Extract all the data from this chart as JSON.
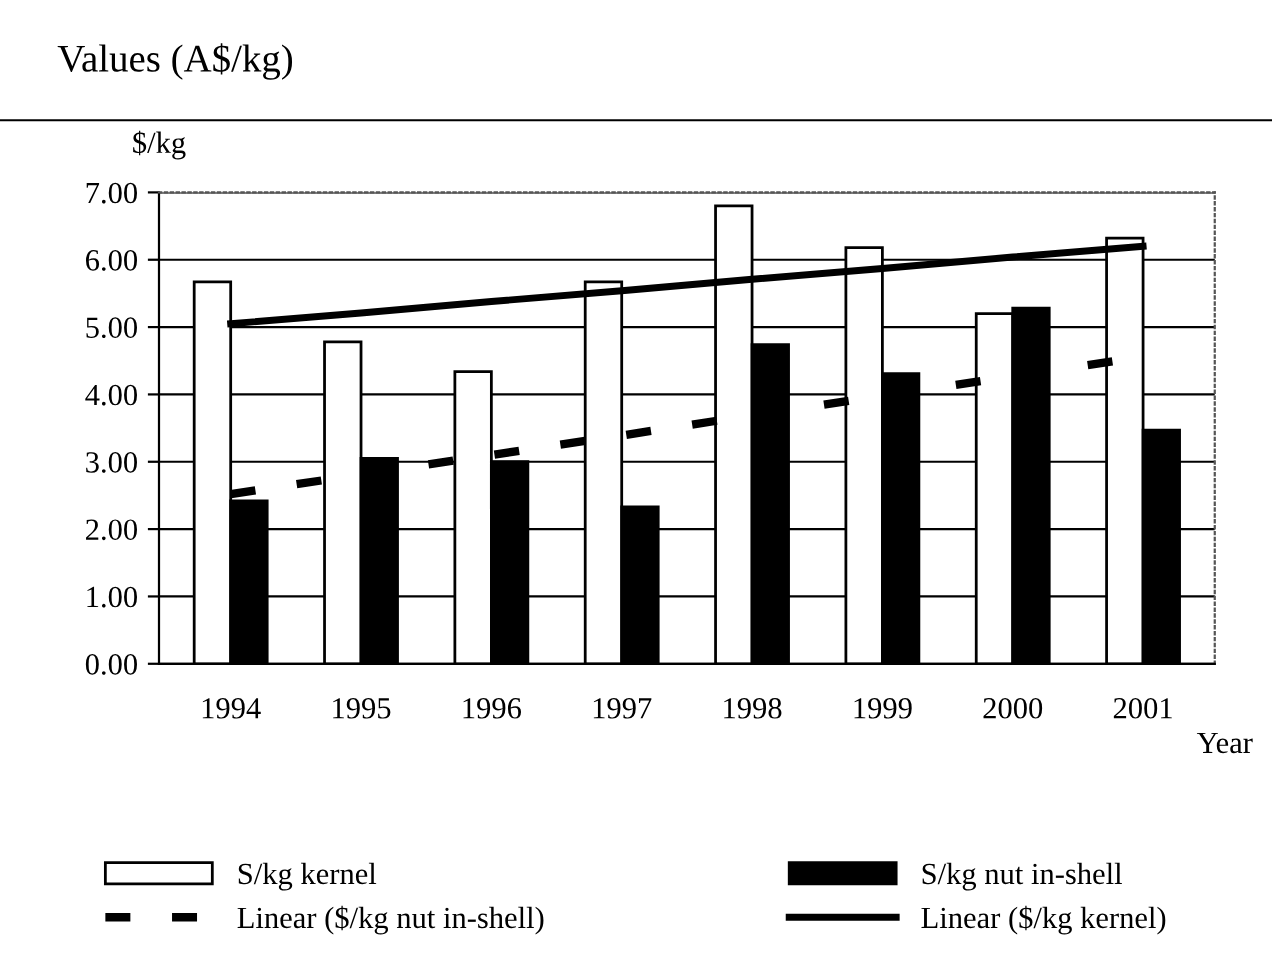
{
  "chart_data": {
    "type": "bar",
    "title": "Values (A$/kg)",
    "ylabel": "$/kg",
    "xlabel": "Year",
    "categories": [
      "1994",
      "1995",
      "1996",
      "1997",
      "1998",
      "1999",
      "2000",
      "2001"
    ],
    "series": [
      {
        "name": "S/kg kernel",
        "color": "#ffffff",
        "values": [
          5.67,
          4.78,
          4.34,
          5.67,
          6.8,
          6.18,
          5.2,
          6.32
        ]
      },
      {
        "name": "S/kg nut in-shell",
        "color": "#000000",
        "values": [
          2.42,
          3.05,
          3.0,
          2.33,
          4.74,
          4.31,
          5.28,
          3.47
        ]
      },
      {
        "name": "Linear ($/kg nut in-shell)",
        "type": "line",
        "line_style": "dashed",
        "color": "#000000",
        "values": [
          2.52,
          2.81,
          3.1,
          3.39,
          3.69,
          3.98,
          4.27,
          4.56
        ]
      },
      {
        "name": "Linear ($/kg kernel)",
        "type": "line",
        "line_style": "solid",
        "color": "#000000",
        "values": [
          5.05,
          5.21,
          5.38,
          5.54,
          5.71,
          5.87,
          6.04,
          6.2
        ]
      }
    ],
    "ylim": [
      0,
      7
    ],
    "yticks": [
      {
        "value": 0,
        "label": "0.00"
      },
      {
        "value": 1,
        "label": "1.00"
      },
      {
        "value": 2,
        "label": "2.00"
      },
      {
        "value": 3,
        "label": "3.00"
      },
      {
        "value": 4,
        "label": "4.00"
      },
      {
        "value": 5,
        "label": "5.00"
      },
      {
        "value": 6,
        "label": "6.00"
      },
      {
        "value": 7,
        "label": "7.00"
      }
    ],
    "grid": "y",
    "legend": "bottom"
  }
}
